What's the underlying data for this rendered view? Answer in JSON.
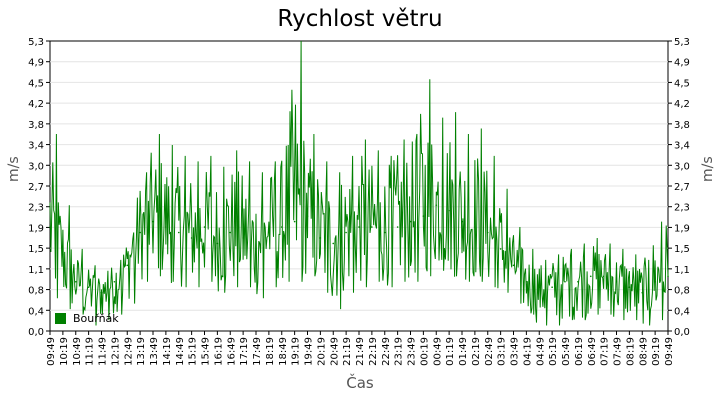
{
  "chart_data": {
    "type": "line",
    "title": "Rychlost větru",
    "xlabel": "Čas",
    "ylabel": "m/s",
    "ylim": [
      0,
      5.3
    ],
    "grid": true,
    "legend_position": "bottom-left",
    "yticks": [
      "0,0",
      "0,4",
      "0,8",
      "1,1",
      "1,5",
      "1,9",
      "2,3",
      "2,7",
      "3,0",
      "3,4",
      "3,8",
      "4,2",
      "4,5",
      "4,9",
      "5,3"
    ],
    "categories": [
      "09:49",
      "10:19",
      "10:49",
      "11:19",
      "11:49",
      "12:19",
      "12:49",
      "13:19",
      "13:49",
      "14:19",
      "14:49",
      "15:19",
      "15:49",
      "16:19",
      "16:49",
      "17:19",
      "17:49",
      "18:19",
      "18:49",
      "19:19",
      "19:49",
      "20:19",
      "20:49",
      "21:19",
      "21:49",
      "22:19",
      "22:49",
      "23:19",
      "23:49",
      "00:19",
      "00:49",
      "01:19",
      "01:49",
      "02:19",
      "02:49",
      "03:19",
      "03:49",
      "04:19",
      "04:49",
      "05:19",
      "05:49",
      "06:19",
      "06:49",
      "07:19",
      "07:49",
      "08:19",
      "08:49",
      "09:19",
      "09:49"
    ],
    "series": [
      {
        "name": "Bouřňák",
        "color": "#008000",
        "values": [
          1.9,
          1.4,
          0.9,
          0.8,
          0.7,
          0.9,
          1.2,
          1.8,
          2.0,
          1.9,
          1.8,
          1.7,
          1.9,
          1.6,
          1.8,
          1.7,
          1.5,
          1.8,
          1.9,
          2.0,
          2.1,
          1.7,
          1.6,
          1.8,
          1.9,
          1.9,
          1.8,
          1.9,
          2.0,
          2.1,
          2.3,
          2.2,
          2.0,
          1.9,
          1.8,
          1.5,
          1.2,
          0.9,
          0.8,
          0.8,
          0.9,
          0.9,
          1.0,
          1.0,
          0.9,
          0.8,
          0.7,
          0.9,
          1.0
        ],
        "peaks": [
          3.6,
          2.3,
          1.5,
          1.2,
          1.1,
          1.3,
          1.8,
          2.9,
          3.6,
          3.4,
          3.2,
          3.1,
          3.2,
          3.0,
          3.3,
          3.1,
          2.9,
          3.1,
          3.4,
          5.3,
          3.6,
          3.1,
          2.9,
          3.2,
          3.5,
          3.3,
          3.2,
          3.5,
          3.6,
          4.6,
          3.9,
          4.0,
          3.6,
          3.7,
          3.2,
          2.6,
          1.9,
          1.5,
          1.3,
          1.4,
          1.5,
          1.6,
          1.7,
          1.6,
          1.5,
          1.4,
          1.3,
          2.0,
          2.3
        ],
        "troughs": [
          0.6,
          0.4,
          0.3,
          0.1,
          0.2,
          0.3,
          0.5,
          0.9,
          1.0,
          0.9,
          0.8,
          0.8,
          0.9,
          0.7,
          0.8,
          0.8,
          0.6,
          0.8,
          0.9,
          0.9,
          1.0,
          0.7,
          0.4,
          0.7,
          0.8,
          0.9,
          0.8,
          0.9,
          0.9,
          1.0,
          1.1,
          1.0,
          0.9,
          0.9,
          0.8,
          0.7,
          0.5,
          0.3,
          0.1,
          0.1,
          0.2,
          0.2,
          0.3,
          0.3,
          0.2,
          0.2,
          0.1,
          0.2,
          0.4
        ]
      }
    ]
  }
}
